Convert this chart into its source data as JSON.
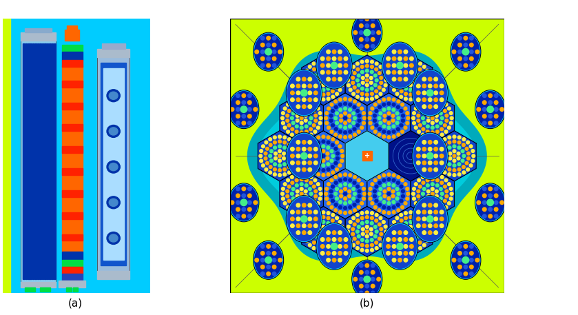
{
  "fig_width": 8.39,
  "fig_height": 4.57,
  "dpi": 100,
  "bg_color": "#ffffff",
  "label_a": "(a)",
  "label_b": "(b)",
  "label_fontsize": 11,
  "panel_a": {
    "bg_cyan": "#00ccff",
    "bg_yellow": "#ccff00",
    "fuel_rod_red": "#ff2200",
    "fuel_rod_orange": "#ff6600",
    "fuel_rod_blue_dark": "#0033aa",
    "fuel_rod_blue_mid": "#1155cc",
    "fuel_rod_blue_light": "#3388ee",
    "cyan_inner": "#00eeff",
    "green_band": "#00dd44",
    "blue_band": "#2244bb",
    "gray_light": "#88aacc",
    "black": "#111111"
  },
  "panel_b": {
    "bg_yellow": "#ccff00",
    "water_dark_cyan": "#00aabb",
    "water_mid_cyan": "#00ccdd",
    "water_light_cyan": "#00ddee",
    "water_bright_cyan": "#44eeff",
    "core_blue_dark": "#0022aa",
    "core_blue_mid": "#1144cc",
    "core_blue_light": "#2266ee",
    "core_cyan_light": "#44ccee",
    "fuel_dot_orange": "#ffaa00",
    "fuel_dot_yellow": "#ffee44",
    "fuel_dot_green": "#44ee88",
    "fuel_dot_blue": "#2255dd",
    "hex_outline": "#111111",
    "irr_orange": "#ff6600",
    "irr_red": "#ff3300",
    "reflector_dark": "#001188",
    "beam_circle_bg": "#2244aa",
    "line_color": "#555555"
  }
}
